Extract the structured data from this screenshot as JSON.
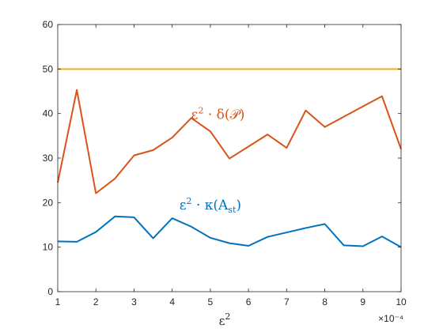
{
  "chart_data": {
    "type": "line",
    "x": [
      1,
      1.5,
      2,
      2.5,
      3,
      3.5,
      4,
      4.5,
      5,
      5.5,
      6,
      6.5,
      7,
      7.5,
      8,
      8.5,
      9,
      9.5,
      10
    ],
    "x_multiplier_label": "×10⁻⁴",
    "xlim": [
      1,
      10
    ],
    "ylim": [
      0,
      60
    ],
    "xticks": [
      "1",
      "2",
      "3",
      "4",
      "5",
      "6",
      "7",
      "8",
      "9",
      "10"
    ],
    "yticks": [
      "0",
      "10",
      "20",
      "30",
      "40",
      "50",
      "60"
    ],
    "xlabel_base": "ε",
    "xlabel_exp": "2",
    "ylabel": "",
    "grid": false,
    "series": [
      {
        "key": "kappa",
        "color": "#0072BD",
        "values": [
          11.3,
          11.2,
          13.4,
          16.9,
          16.7,
          12.0,
          16.5,
          14.6,
          12.1,
          10.9,
          10.3,
          12.3,
          13.3,
          14.3,
          15.2,
          10.4,
          10.2,
          12.4,
          10.0
        ],
        "annotation": {
          "base": "ε",
          "exp": "2",
          "rest": " · κ(A",
          "sub": "st",
          "close": ")",
          "x": 5.0,
          "y": 18.5
        }
      },
      {
        "key": "delta",
        "color": "#D95319",
        "values": [
          24.5,
          45.3,
          22.1,
          25.4,
          30.6,
          31.8,
          34.6,
          39.0,
          36.0,
          29.9,
          32.6,
          35.3,
          32.3,
          40.7,
          37.0,
          39.3,
          41.6,
          43.9,
          32.0
        ],
        "annotation": {
          "base": "ε",
          "exp": "2",
          "rest": " · δ(𝒫)",
          "x": 5.2,
          "y": 38.8
        }
      },
      {
        "key": "constant",
        "color": "#EDB120",
        "values": [
          50,
          50,
          50,
          50,
          50,
          50,
          50,
          50,
          50,
          50,
          50,
          50,
          50,
          50,
          50,
          50,
          50,
          50,
          50
        ]
      }
    ]
  }
}
